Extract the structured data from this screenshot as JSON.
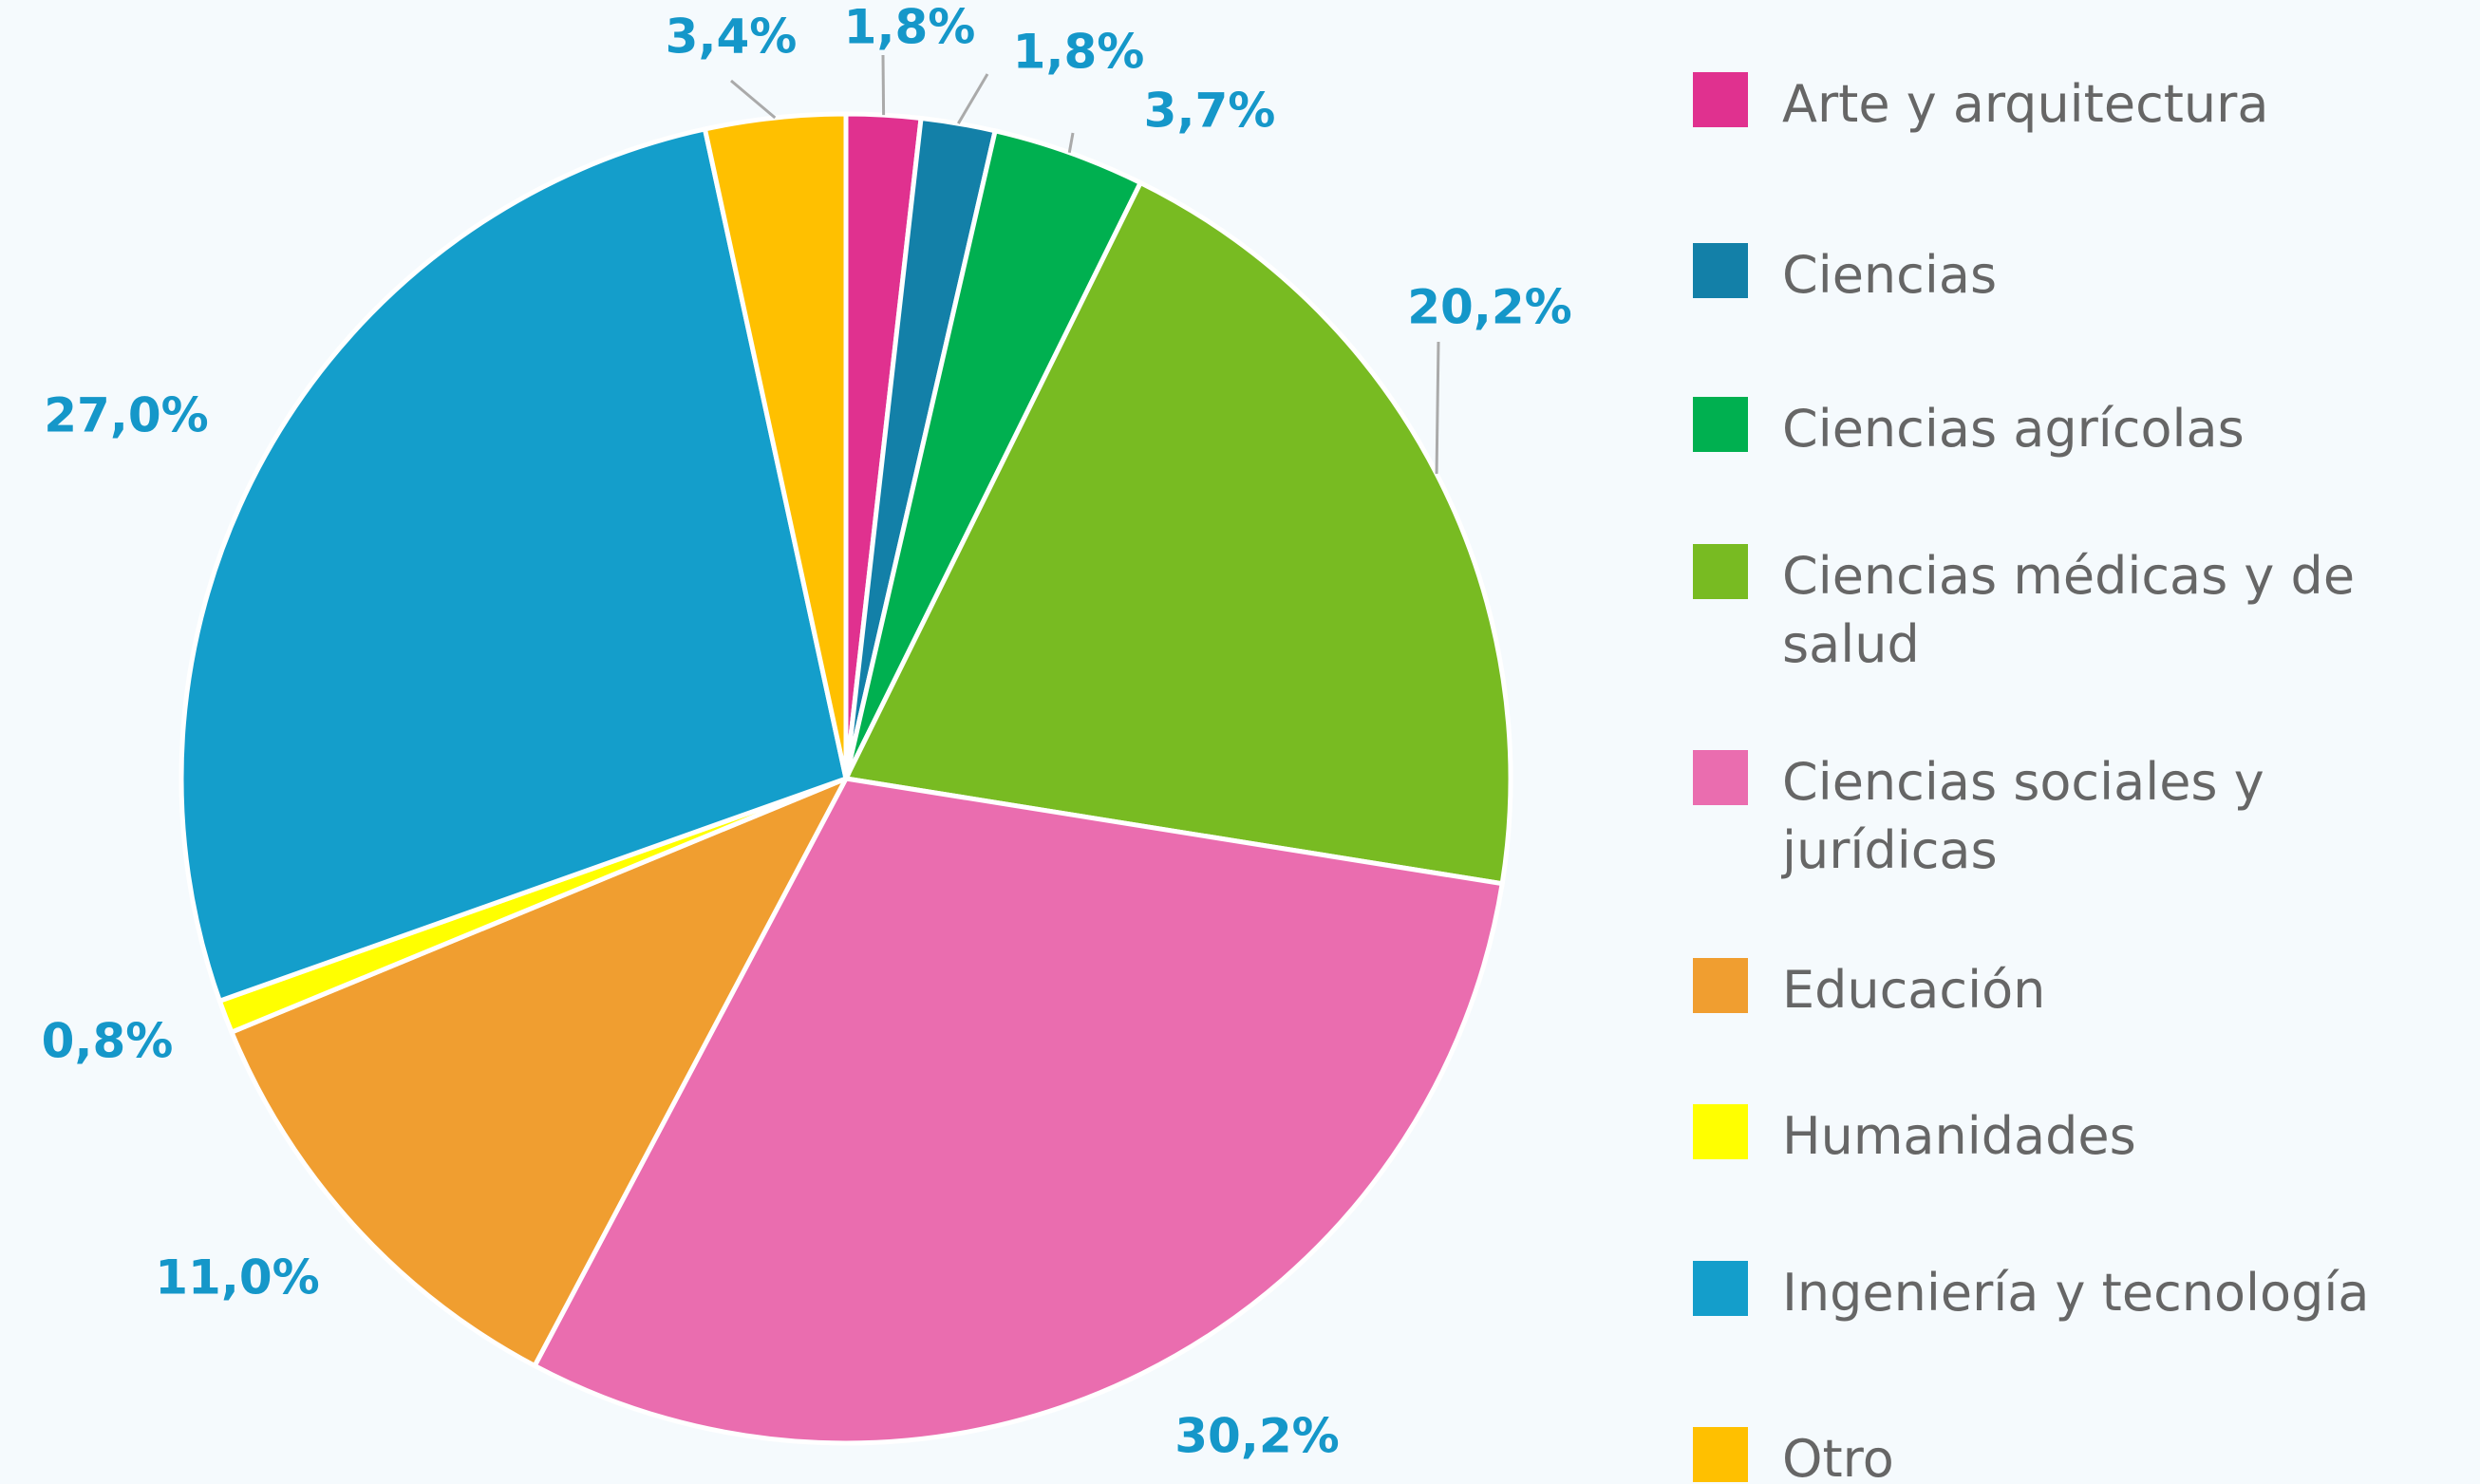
{
  "chart_data": {
    "type": "pie",
    "categories": [
      "Arte y arquitectura",
      "Ciencias",
      "Ciencias agrícolas",
      "Ciencias médicas y de salud",
      "Ciencias sociales y jurídicas",
      "Educación",
      "Humanidades",
      "Ingeniería y tecnología",
      "Otro"
    ],
    "values": [
      1.8,
      1.8,
      3.7,
      20.2,
      30.2,
      11.0,
      0.8,
      27.0,
      3.4
    ],
    "value_labels": [
      "1,8%",
      "1,8%",
      "3,7%",
      "20,2%",
      "30,2%",
      "11,0%",
      "0,8%",
      "27,0%",
      "3,4%"
    ],
    "colors": [
      "#e0318f",
      "#1380a8",
      "#00b050",
      "#78bb22",
      "#ea6daf",
      "#f09e30",
      "#ffff00",
      "#149ecb",
      "#ffc000"
    ],
    "legend": "right"
  }
}
